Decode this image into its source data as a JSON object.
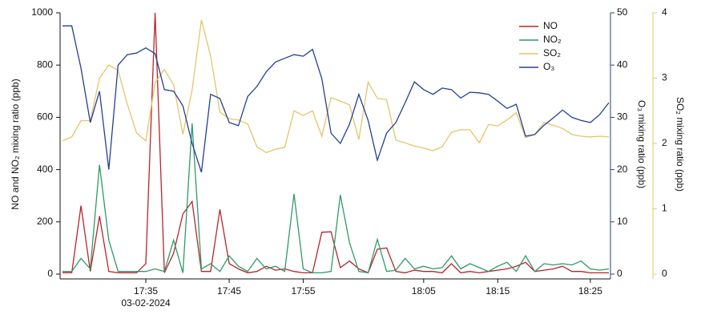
{
  "chart_data": {
    "type": "line",
    "categories": [
      null,
      null,
      null,
      null,
      null,
      null,
      null,
      null,
      null,
      "17:35",
      null,
      null,
      null,
      null,
      null,
      null,
      null,
      null,
      "17:45",
      null,
      null,
      null,
      null,
      null,
      null,
      null,
      "17:55",
      null,
      null,
      null,
      null,
      null,
      null,
      null,
      null,
      null,
      null,
      null,
      null,
      "18:05",
      null,
      null,
      null,
      null,
      null,
      null,
      null,
      "18:15",
      null,
      null,
      null,
      null,
      null,
      null,
      null,
      null,
      null,
      "18:25",
      null,
      null
    ],
    "date_label": "03-02-2024",
    "ylabel": "NO and NO₂ mixing ratio (ppb)",
    "y2label": "O₃ mixing ratio (ppb)",
    "y3label": "SO₂ mixing ratio (ppb)",
    "ylim": [
      0,
      1000
    ],
    "yticks": [
      0,
      200,
      400,
      600,
      800,
      1000
    ],
    "y2lim": [
      0,
      50
    ],
    "y2ticks": [
      0,
      10,
      20,
      30,
      40,
      50
    ],
    "y3lim": [
      0,
      4
    ],
    "y3ticks": [
      0,
      1,
      2,
      3,
      4
    ],
    "y2color": "#23418f",
    "y3color": "#e8c46a",
    "legend": "upper right",
    "series": [
      {
        "name": "NO",
        "color": "#b8252b",
        "axis": "y",
        "values": [
          5,
          5,
          262,
          10,
          222,
          10,
          5,
          5,
          5,
          40,
          1000,
          5,
          80,
          230,
          278,
          10,
          10,
          248,
          40,
          20,
          5,
          10,
          30,
          15,
          20,
          10,
          5,
          5,
          160,
          162,
          25,
          50,
          20,
          5,
          95,
          100,
          10,
          5,
          15,
          10,
          10,
          5,
          40,
          5,
          10,
          5,
          10,
          15,
          20,
          30,
          45,
          10,
          15,
          20,
          30,
          10,
          10,
          5,
          5,
          5
        ]
      },
      {
        "name": "NO₂",
        "color": "#2e9a68",
        "axis": "y",
        "values": [
          10,
          10,
          60,
          20,
          418,
          130,
          10,
          10,
          10,
          10,
          20,
          10,
          130,
          5,
          577,
          20,
          40,
          10,
          70,
          30,
          10,
          60,
          20,
          30,
          10,
          307,
          20,
          5,
          5,
          10,
          303,
          120,
          10,
          5,
          133,
          10,
          15,
          60,
          20,
          30,
          20,
          25,
          70,
          20,
          40,
          25,
          10,
          30,
          45,
          10,
          70,
          10,
          40,
          35,
          40,
          35,
          50,
          20,
          15,
          20
        ]
      },
      {
        "name": "SO₂",
        "color": "#e6c46a",
        "axis": "y3",
        "values": [
          2.04,
          2.1,
          2.35,
          2.35,
          3.0,
          3.2,
          3.12,
          2.6,
          2.16,
          2.04,
          2.93,
          3.13,
          2.9,
          2.14,
          2.82,
          3.89,
          3.34,
          2.48,
          2.38,
          2.36,
          2.3,
          1.95,
          1.86,
          1.91,
          1.94,
          2.5,
          2.43,
          2.5,
          2.11,
          2.7,
          2.65,
          2.59,
          2.06,
          2.94,
          2.69,
          2.67,
          2.05,
          2.01,
          1.96,
          1.93,
          1.89,
          1.95,
          2.17,
          2.21,
          2.21,
          2.01,
          2.29,
          2.27,
          2.36,
          2.47,
          2.09,
          2.14,
          2.32,
          2.28,
          2.23,
          2.14,
          2.11,
          2.1,
          2.11,
          2.1
        ]
      },
      {
        "name": "O₃",
        "color": "#23418f",
        "axis": "y2",
        "values": [
          47.5,
          47.5,
          39.4,
          29,
          35,
          20,
          40,
          42,
          42.3,
          43.3,
          42.2,
          35.3,
          35,
          32.2,
          25,
          19.5,
          34.4,
          33.6,
          29,
          28.4,
          34,
          35.9,
          38.7,
          40.6,
          41.3,
          42,
          41.7,
          43,
          37.4,
          27,
          25,
          28.7,
          34.4,
          29.4,
          21.8,
          27,
          29,
          32.8,
          36.8,
          35.3,
          34.4,
          35.6,
          35.3,
          33.7,
          34.8,
          34.7,
          34.4,
          33.1,
          31.7,
          32.5,
          26.4,
          26.7,
          28.5,
          29.9,
          31.4,
          30,
          29.4,
          29,
          30.5,
          32.8
        ]
      }
    ]
  }
}
